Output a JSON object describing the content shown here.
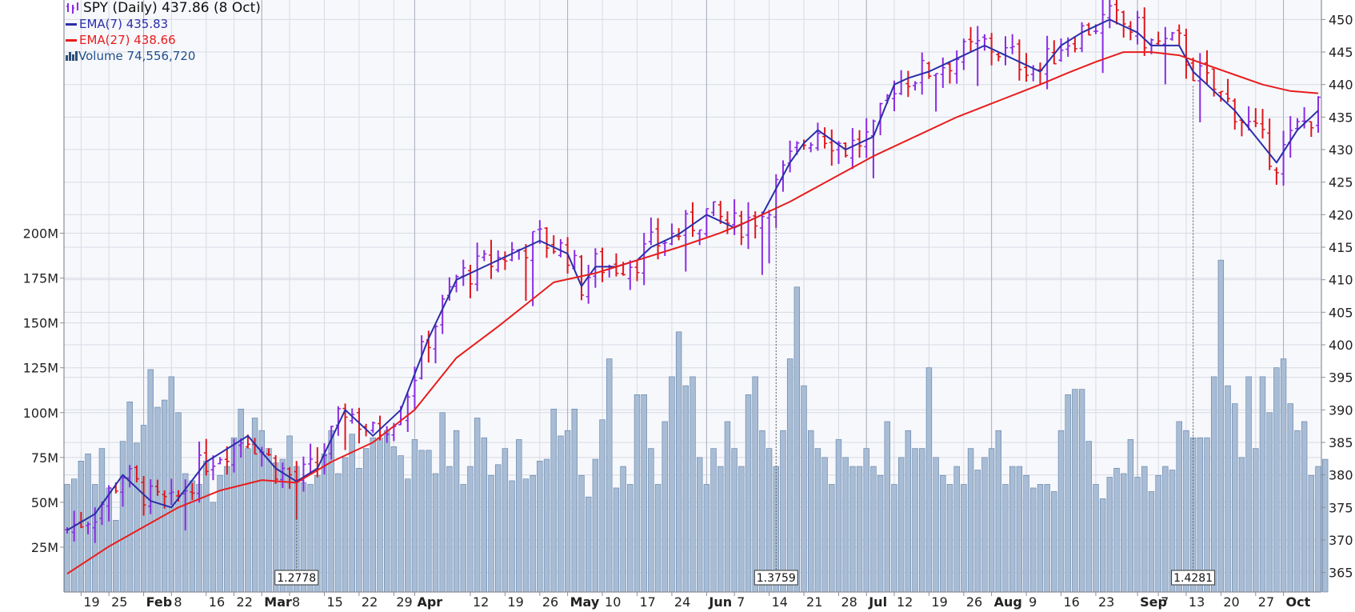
{
  "legend": {
    "title": "SPY (Daily) 437.86 (8 Oct)",
    "ema_short": "EMA(7) 435.83",
    "ema_long": "EMA(27) 438.66",
    "volume": "Volume 74,556,720"
  },
  "colors": {
    "background": "#ffffff",
    "plot_bg": "#f7f8fc",
    "grid": "#d7dbe3",
    "up_bar": "#8a2be2",
    "down_bar": "#e0161d",
    "ema_short": "#2a2ea8",
    "ema_long": "#e81d1d",
    "volume_fill": "#a8bdd5",
    "volume_stroke": "#5f7fa6"
  },
  "chart_data": {
    "type": "line",
    "title": "SPY (Daily) 437.86 (8 Oct)",
    "price_ylim": [
      362,
      453
    ],
    "price_ticks": [
      365,
      370,
      375,
      380,
      385,
      390,
      395,
      400,
      405,
      410,
      415,
      420,
      425,
      430,
      435,
      440,
      445,
      450
    ],
    "volume_ticks": [
      "25M",
      "50M",
      "75M",
      "100M",
      "125M",
      "150M",
      "175M",
      "200M"
    ],
    "volume_tick_values": [
      25,
      50,
      75,
      100,
      125,
      150,
      175,
      200
    ],
    "volume_ylim_millions": [
      0,
      330
    ],
    "x_labels": [
      "19",
      "25",
      "Feb",
      "8",
      "16",
      "22",
      "Mar",
      "8",
      "15",
      "22",
      "29",
      "Apr",
      "12",
      "19",
      "26",
      "May",
      "10",
      "17",
      "24",
      "Jun",
      "7",
      "14",
      "21",
      "28",
      "Jul",
      "12",
      "19",
      "26",
      "Aug",
      "9",
      "16",
      "23",
      "Sep",
      "7",
      "13",
      "20",
      "27",
      "Oct"
    ],
    "x_label_bold": [
      "Feb",
      "Mar",
      "Apr",
      "May",
      "Jun",
      "Jul",
      "Aug",
      "Sep",
      "Oct"
    ],
    "x_label_days": [
      2,
      6,
      11,
      15,
      20,
      24,
      28,
      32,
      37,
      42,
      47,
      50,
      58,
      63,
      68,
      72,
      77,
      82,
      87,
      92,
      96,
      101,
      106,
      111,
      115,
      119,
      124,
      129,
      133,
      138,
      143,
      148,
      154,
      157,
      161,
      166,
      171,
      175
    ],
    "month_boundary_days": [
      11,
      28,
      50,
      72,
      92,
      115,
      133,
      154,
      175
    ],
    "series": [
      {
        "name": "EMA(7)",
        "x_day": [
          0,
          4,
          8,
          12,
          15,
          20,
          26,
          30,
          33,
          36,
          40,
          44,
          48,
          52,
          56,
          60,
          64,
          68,
          72,
          74,
          76,
          79,
          82,
          84,
          88,
          92,
          96,
          100,
          104,
          106,
          108,
          112,
          116,
          119,
          121,
          124,
          128,
          132,
          136,
          140,
          143,
          146,
          150,
          154,
          156,
          160,
          162,
          164,
          166,
          168,
          171,
          174,
          177,
          180
        ],
        "values": [
          371.5,
          374,
          380,
          376,
          375,
          382,
          386,
          381,
          379,
          381,
          390,
          386,
          390,
          401,
          410,
          412,
          414,
          416,
          414,
          409,
          412,
          412,
          413,
          415,
          417,
          420,
          418,
          420,
          428,
          431,
          433,
          430,
          432,
          440,
          441,
          442,
          444,
          446,
          444,
          442,
          446,
          448,
          450,
          448,
          446,
          446,
          442,
          440,
          438,
          436,
          432,
          428,
          433,
          436
        ]
      },
      {
        "name": "EMA(27)",
        "x_day": [
          0,
          6,
          12,
          16,
          22,
          28,
          33,
          38,
          44,
          50,
          56,
          62,
          66,
          70,
          76,
          82,
          88,
          94,
          98,
          104,
          110,
          116,
          122,
          128,
          134,
          140,
          144,
          148,
          152,
          156,
          160,
          164,
          168,
          172,
          176,
          180
        ],
        "values": [
          364.8,
          369,
          372.6,
          375,
          377.6,
          379.2,
          378.8,
          382,
          385,
          390,
          398,
          402.8,
          406.2,
          409.6,
          411,
          413,
          415,
          417.2,
          419,
          422,
          425.5,
          429,
          432,
          435,
          437.5,
          440,
          441.8,
          443.5,
          445,
          445,
          444.5,
          443,
          441.5,
          440,
          439,
          438.66
        ]
      }
    ],
    "ohlc_bars": {
      "days": "0..180",
      "close_approx": "EMA(7) path with daily noise",
      "up_color": "purple",
      "down_color": "red"
    },
    "volume": {
      "unit": "millions",
      "values": [
        60,
        63,
        73,
        77,
        60,
        80,
        58,
        40,
        84,
        106,
        83,
        93,
        124,
        103,
        107,
        120,
        100,
        66,
        62,
        60,
        73,
        50,
        65,
        70,
        86,
        102,
        80,
        97,
        90,
        80,
        72,
        74,
        87,
        70,
        61,
        60,
        65,
        77,
        90,
        66,
        75,
        88,
        69,
        80,
        86,
        86,
        90,
        81,
        76,
        63,
        85,
        79,
        79,
        66,
        100,
        70,
        90,
        60,
        70,
        97,
        86,
        65,
        71,
        80,
        62,
        85,
        63,
        65,
        73,
        74,
        102,
        87,
        90,
        102,
        65,
        53,
        74,
        96,
        130,
        58,
        70,
        60,
        110,
        110,
        80,
        60,
        95,
        120,
        145,
        115,
        120,
        75,
        60,
        80,
        70,
        95,
        80,
        70,
        110,
        120,
        90,
        80,
        70,
        90,
        130,
        170,
        115,
        90,
        80,
        75,
        60,
        85,
        75,
        70,
        70,
        80,
        70,
        65,
        95,
        60,
        75,
        90,
        80,
        80,
        125,
        75,
        65,
        60,
        70,
        60,
        80,
        68,
        75,
        80,
        90,
        60,
        70,
        70,
        65,
        58,
        60,
        60,
        56,
        90,
        110,
        113,
        113,
        84,
        60,
        52,
        64,
        69,
        66,
        85,
        64,
        70,
        56,
        65,
        70,
        68,
        95,
        90,
        86,
        86,
        86,
        120,
        185,
        115,
        105,
        75,
        120,
        80,
        120,
        100,
        125,
        130,
        105,
        90,
        95,
        65,
        70,
        74
      ],
      "annotations": [
        {
          "day": 33,
          "label": "1.2778"
        },
        {
          "day": 102,
          "label": "1.3759"
        },
        {
          "day": 162,
          "label": "1.4281"
        }
      ]
    }
  }
}
